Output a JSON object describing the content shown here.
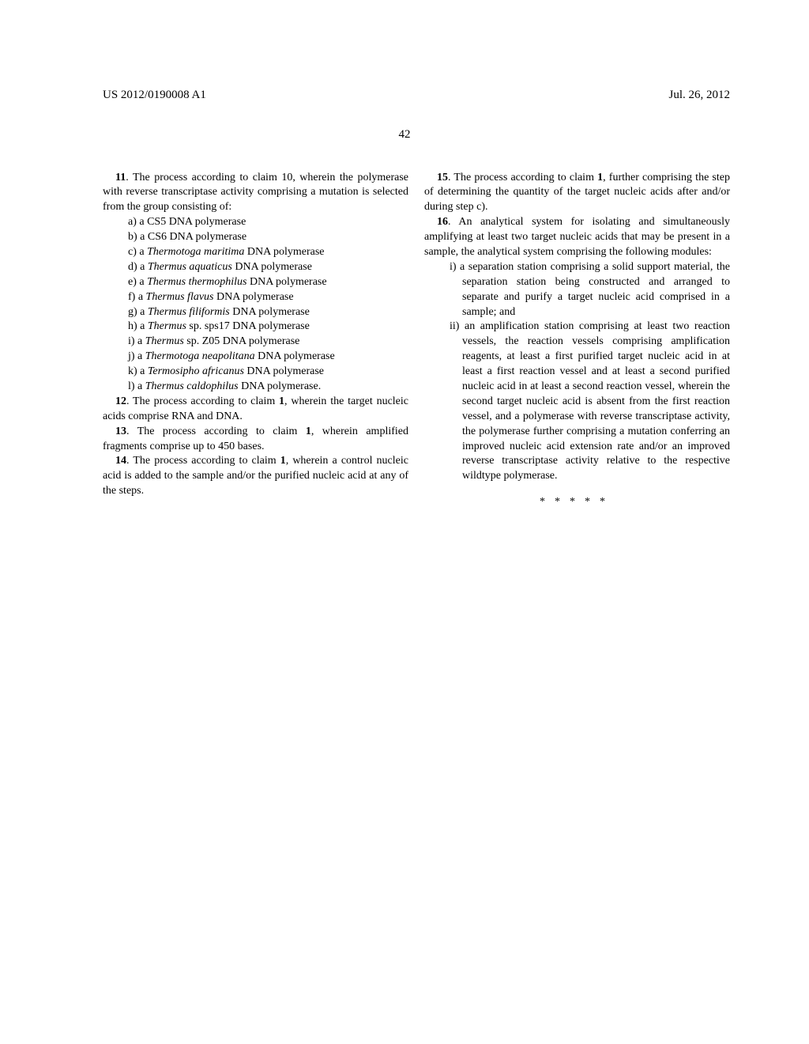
{
  "header": {
    "docnum": "US 2012/0190008 A1",
    "date": "Jul. 26, 2012",
    "pagenum": "42"
  },
  "left": {
    "c11_intro": "11. The process according to claim 10, wherein the polymerase with reverse transcriptase activity comprising a mutation is selected from the group consisting of:",
    "c11_a": "a) a CS5 DNA polymerase",
    "c11_b": "b) a CS6 DNA polymerase",
    "c11_c_pre": "c) a ",
    "c11_c_it": "Thermotoga maritima",
    "c11_c_post": " DNA polymerase",
    "c11_d_pre": "d) a ",
    "c11_d_it": "Thermus aquaticus",
    "c11_d_post": " DNA polymerase",
    "c11_e_pre": "e) a ",
    "c11_e_it": "Thermus thermophilus",
    "c11_e_post": " DNA polymerase",
    "c11_f_pre": "f) a ",
    "c11_f_it": "Thermus flavus",
    "c11_f_post": " DNA polymerase",
    "c11_g_pre": "g) a ",
    "c11_g_it": "Thermus filiformis",
    "c11_g_post": " DNA polymerase",
    "c11_h_pre": "h) a ",
    "c11_h_it": "Thermus",
    "c11_h_post": " sp. sps17 DNA polymerase",
    "c11_i_pre": "i) a ",
    "c11_i_it": "Thermus",
    "c11_i_post": " sp. Z05 DNA polymerase",
    "c11_j_pre": "j) a ",
    "c11_j_it": "Thermotoga neapolitana",
    "c11_j_post": " DNA polymerase",
    "c11_k_pre": "k) a ",
    "c11_k_it": "Termosipho africanus",
    "c11_k_post": " DNA polymerase",
    "c11_l_pre": "l) a ",
    "c11_l_it": "Thermus caldophilus",
    "c11_l_post": " DNA polymerase.",
    "c12_pre": "12. The process according to claim ",
    "c12_b": "1",
    "c12_post": ", wherein the target nucleic acids comprise RNA and DNA.",
    "c13_pre": "13. The process according to claim ",
    "c13_b": "1",
    "c13_post": ", wherein amplified fragments comprise up to 450 bases.",
    "c14_pre": "14. The process according to claim ",
    "c14_b": "1",
    "c14_post": ", wherein a control nucleic acid is added to the sample and/or the purified nucleic acid at any of the steps."
  },
  "right": {
    "c15_pre": "15. The process according to claim ",
    "c15_b": "1",
    "c15_post": ", further comprising the step of determining the quantity of the target nucleic acids after and/or during step c).",
    "c16_intro": "16. An analytical system for isolating and simultaneously amplifying at least two target nucleic acids that may be present in a sample, the analytical system comprising the following modules:",
    "c16_i": "i) a separation station comprising a solid support material, the separation station being constructed and arranged to separate and purify a target nucleic acid comprised in a sample; and",
    "c16_ii": "ii) an amplification station comprising at least two reaction vessels, the reaction vessels comprising amplification reagents, at least a first purified target nucleic acid in at least a first reaction vessel and at least a second purified nucleic acid in at least a second reaction vessel, wherein the second target nucleic acid is absent from the first reaction vessel, and a polymerase with reverse transcriptase activity, the polymerase further comprising a mutation conferring an improved nucleic acid extension rate and/or an improved reverse transcriptase activity relative to the respective wildtype polymerase.",
    "stars": "*****"
  }
}
